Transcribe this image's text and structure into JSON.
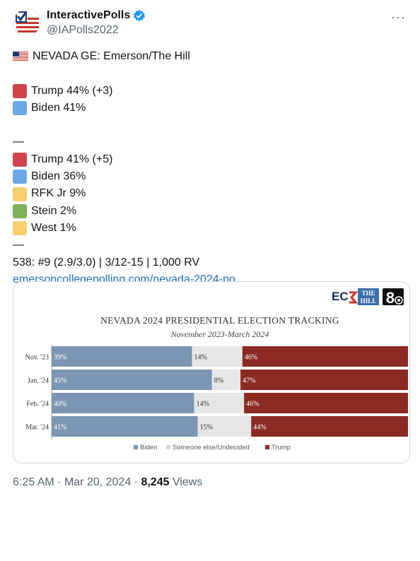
{
  "tweet": {
    "display_name": "InteractivePolls",
    "handle": "@IAPolls2022",
    "more": "···",
    "lines": [
      {
        "kind": "flag",
        "text": "NEVADA GE: Emerson/The Hill"
      },
      {
        "kind": "blank",
        "text": ""
      },
      {
        "kind": "item",
        "color": "#d1434a",
        "text": "Trump 44% (+3)"
      },
      {
        "kind": "item",
        "color": "#6aa8e6",
        "text": "Biden 41%"
      },
      {
        "kind": "blank",
        "text": ""
      },
      {
        "kind": "text",
        "text": "—"
      },
      {
        "kind": "item",
        "color": "#d1434a",
        "text": "Trump 41% (+5)"
      },
      {
        "kind": "item",
        "color": "#6aa8e6",
        "text": "Biden 36%"
      },
      {
        "kind": "item",
        "color": "#f7cf6e",
        "text": "RFK Jr 9%"
      },
      {
        "kind": "item",
        "color": "#7fb05a",
        "text": "Stein 2%"
      },
      {
        "kind": "item",
        "color": "#f7cf6e",
        "text": "West 1%"
      },
      {
        "kind": "text",
        "text": "—"
      },
      {
        "kind": "text",
        "text": "538: #9 (2.9/3.0) | 3/12-15 | 1,000 RV"
      },
      {
        "kind": "link",
        "text": "emersoncollegepolling.com/nevada-2024-po..."
      }
    ],
    "time": "6:25 AM",
    "date": "Mar 20, 2024",
    "views_count": "8,245",
    "views_label": "Views",
    "separator": "·"
  },
  "chart_logos": {
    "ecp": "EC",
    "thehill_1": "THE",
    "thehill_2": "HILL",
    "ch8": "8"
  },
  "chart_data": {
    "type": "bar",
    "title": "NEVADA 2024 PRESIDENTIAL ELECTION TRACKING",
    "subtitle": "November 2023-March 2024",
    "categories": [
      "Nov. '23",
      "Jan. '24",
      "Feb. '24",
      "Mar. '24"
    ],
    "series": [
      {
        "name": "Biden",
        "color": "#7b96b4",
        "values": [
          39,
          45,
          40,
          41
        ],
        "labels": [
          "39%",
          "45%",
          "40%",
          "41%"
        ]
      },
      {
        "name": "Someone else/Undecided",
        "color": "#e6e6e6",
        "values": [
          14,
          8,
          14,
          15
        ],
        "labels": [
          "14%",
          "8%",
          "14%",
          "15%"
        ]
      },
      {
        "name": "Trump",
        "color": "#8b2a23",
        "values": [
          46,
          47,
          46,
          44
        ],
        "labels": [
          "46%",
          "47%",
          "46%",
          "44%"
        ]
      }
    ],
    "stacked": true,
    "orientation": "horizontal",
    "legend": "bottom"
  }
}
